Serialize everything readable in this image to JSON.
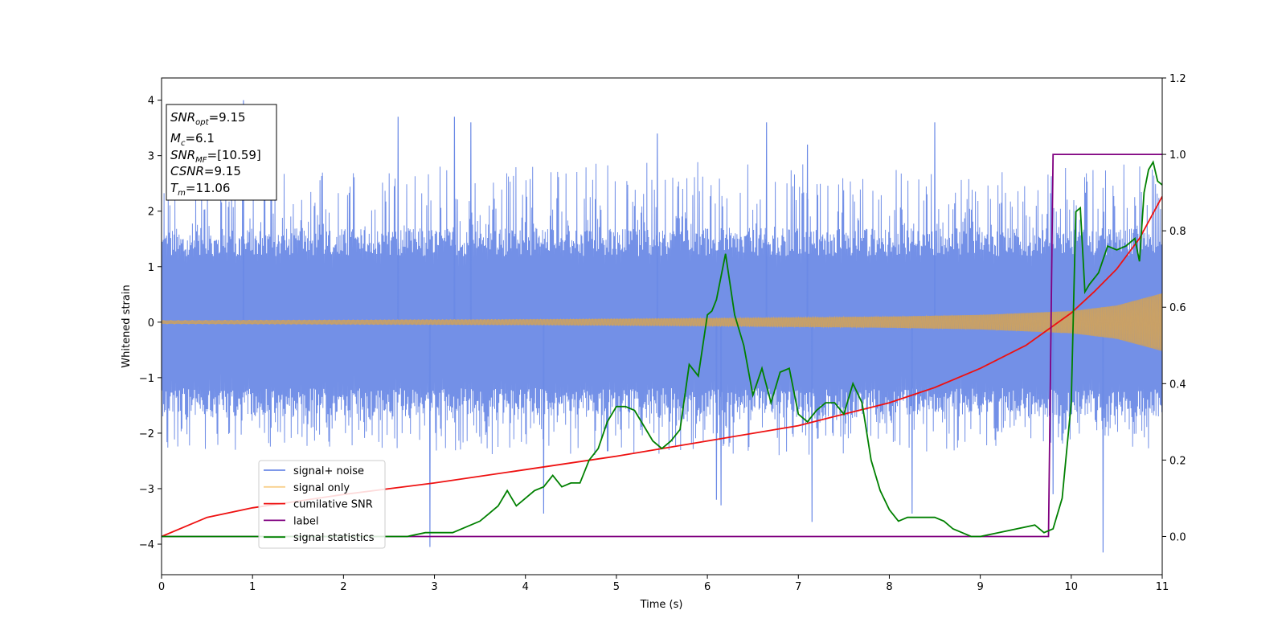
{
  "chart_data": {
    "type": "line",
    "xlabel": "Time (s)",
    "ylabel": "Whitened strain",
    "xlim": [
      0,
      11
    ],
    "ylim_left": [
      -4.55,
      4.4
    ],
    "ylim_right": [
      -0.1,
      1.2
    ],
    "x_ticks": [
      0,
      1,
      2,
      3,
      4,
      5,
      6,
      7,
      8,
      9,
      10,
      11
    ],
    "y_ticks_left": [
      -4,
      -3,
      -2,
      -1,
      0,
      1,
      2,
      3,
      4
    ],
    "y_ticks_right": [
      0.0,
      0.2,
      0.4,
      0.6,
      0.8,
      1.0,
      1.2
    ],
    "legend_position": "bottom-left",
    "grid": false,
    "annotation": {
      "lines": [
        {
          "base": "SNR",
          "sub": "opt",
          "rest": "=9.15"
        },
        {
          "base": "M",
          "sub": "c",
          "rest": "=6.1"
        },
        {
          "base": "SNR",
          "sub": "MF",
          "rest": "=[10.59]"
        },
        {
          "base": "CSNR",
          "sub": "",
          "rest": "=9.15"
        },
        {
          "base": "T",
          "sub": "m",
          "rest": "=11.06"
        }
      ]
    },
    "series": [
      {
        "name": "signal+ noise",
        "axis": "left",
        "color": "#6b8ae6",
        "note_shape": "noise band",
        "envelope": {
          "x": [
            0,
            2,
            4,
            6,
            8,
            9,
            10,
            11
          ],
          "upper": [
            2.6,
            2.8,
            2.9,
            2.9,
            2.8,
            2.7,
            2.8,
            2.9
          ],
          "lower": [
            -2.3,
            -2.3,
            -2.4,
            -2.4,
            -2.4,
            -2.3,
            -2.2,
            -2.3
          ]
        },
        "core_band": {
          "upper": 1.7,
          "lower": -1.7
        },
        "peaks": [
          {
            "x": 0.9,
            "y": 4.0
          },
          {
            "x": 2.6,
            "y": 3.7
          },
          {
            "x": 3.22,
            "y": 3.7
          },
          {
            "x": 3.4,
            "y": 3.6
          },
          {
            "x": 5.45,
            "y": 3.4
          },
          {
            "x": 6.65,
            "y": 3.6
          },
          {
            "x": 7.1,
            "y": 3.2
          },
          {
            "x": 8.5,
            "y": 3.6
          },
          {
            "x": 2.95,
            "y": -4.05
          },
          {
            "x": 4.2,
            "y": -3.45
          },
          {
            "x": 6.15,
            "y": -3.3
          },
          {
            "x": 6.1,
            "y": -3.2
          },
          {
            "x": 7.15,
            "y": -3.6
          },
          {
            "x": 8.25,
            "y": -3.45
          },
          {
            "x": 10.35,
            "y": -4.15
          },
          {
            "x": 9.8,
            "y": -3.1
          }
        ]
      },
      {
        "name": "signal only",
        "axis": "left",
        "color": "#f5b041",
        "note_shape": "chirp",
        "amplitude": {
          "x": [
            0,
            2,
            4,
            6,
            8,
            9,
            10,
            10.5,
            11
          ],
          "y": [
            0.03,
            0.04,
            0.05,
            0.07,
            0.1,
            0.13,
            0.2,
            0.3,
            0.52
          ]
        }
      },
      {
        "name": "cumilative SNR",
        "axis": "right",
        "color": "#ee1111",
        "x": [
          0,
          0.5,
          1,
          2,
          3,
          4,
          5,
          6,
          7,
          7.5,
          8,
          8.5,
          9,
          9.5,
          10,
          10.25,
          10.5,
          10.75,
          11
        ],
        "y": [
          0.0,
          0.05,
          0.075,
          0.11,
          0.14,
          0.175,
          0.21,
          0.25,
          0.29,
          0.32,
          0.35,
          0.39,
          0.44,
          0.5,
          0.585,
          0.64,
          0.7,
          0.78,
          0.89
        ]
      },
      {
        "name": "label",
        "axis": "right",
        "color": "#800080",
        "x": [
          0,
          9.75,
          9.8,
          11
        ],
        "y": [
          0,
          0,
          1,
          1
        ]
      },
      {
        "name": "signal statistics",
        "axis": "right",
        "color": "#008000",
        "x": [
          0,
          2.7,
          2.9,
          3.2,
          3.5,
          3.6,
          3.7,
          3.8,
          3.9,
          4.0,
          4.1,
          4.2,
          4.3,
          4.4,
          4.5,
          4.6,
          4.7,
          4.8,
          4.9,
          5.0,
          5.1,
          5.2,
          5.3,
          5.4,
          5.5,
          5.6,
          5.7,
          5.8,
          5.9,
          6.0,
          6.05,
          6.1,
          6.2,
          6.3,
          6.4,
          6.5,
          6.6,
          6.7,
          6.8,
          6.9,
          7.0,
          7.1,
          7.2,
          7.3,
          7.4,
          7.5,
          7.6,
          7.7,
          7.8,
          7.9,
          8.0,
          8.1,
          8.2,
          8.3,
          8.4,
          8.5,
          8.6,
          8.7,
          8.8,
          8.9,
          9.0,
          9.2,
          9.4,
          9.6,
          9.7,
          9.8,
          9.9,
          10.0,
          10.05,
          10.1,
          10.15,
          10.2,
          10.3,
          10.4,
          10.5,
          10.6,
          10.7,
          10.75,
          10.8,
          10.85,
          10.9,
          10.95,
          11.0
        ],
        "y": [
          0.0,
          0.0,
          0.01,
          0.01,
          0.04,
          0.06,
          0.08,
          0.12,
          0.08,
          0.1,
          0.12,
          0.13,
          0.16,
          0.13,
          0.14,
          0.14,
          0.2,
          0.23,
          0.3,
          0.34,
          0.34,
          0.33,
          0.29,
          0.25,
          0.23,
          0.25,
          0.28,
          0.45,
          0.42,
          0.58,
          0.59,
          0.62,
          0.74,
          0.58,
          0.5,
          0.37,
          0.44,
          0.35,
          0.43,
          0.44,
          0.32,
          0.3,
          0.33,
          0.35,
          0.35,
          0.32,
          0.4,
          0.35,
          0.2,
          0.12,
          0.07,
          0.04,
          0.05,
          0.05,
          0.05,
          0.05,
          0.04,
          0.02,
          0.01,
          0.0,
          0.0,
          0.01,
          0.02,
          0.03,
          0.01,
          0.02,
          0.1,
          0.35,
          0.85,
          0.86,
          0.64,
          0.66,
          0.69,
          0.76,
          0.75,
          0.76,
          0.78,
          0.72,
          0.9,
          0.96,
          0.98,
          0.93,
          0.92
        ]
      }
    ]
  }
}
